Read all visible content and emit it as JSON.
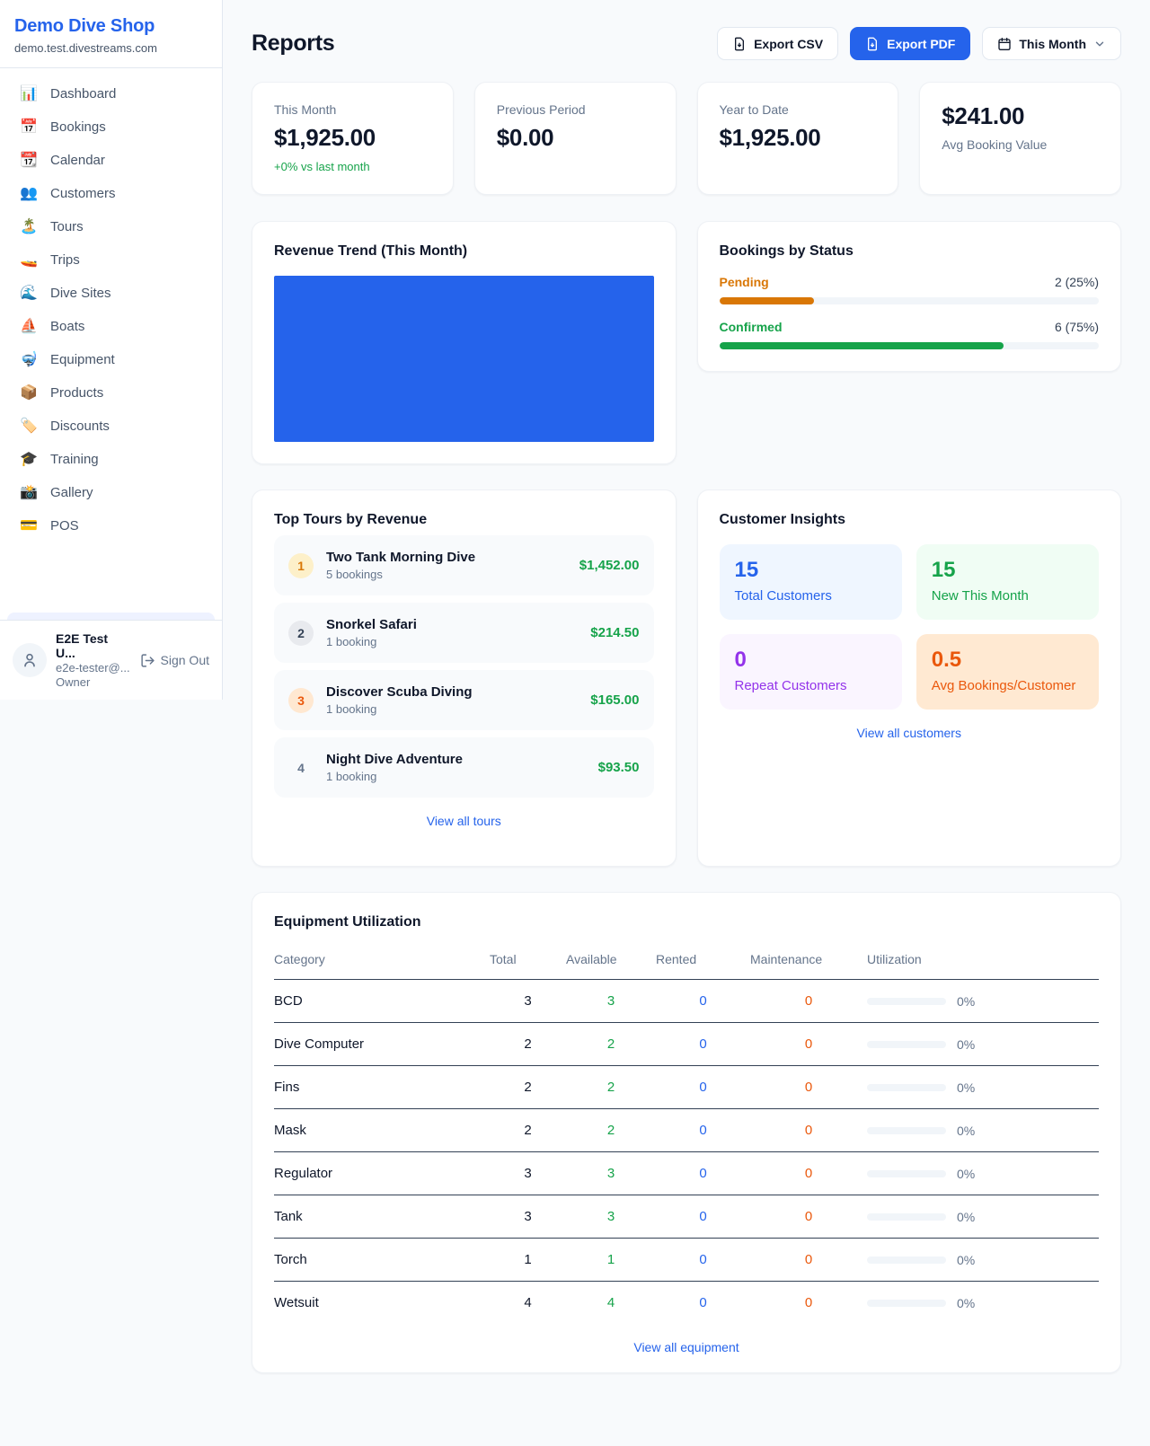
{
  "colors": {
    "accent_blue": "#2563eb",
    "green": "#16a34a",
    "amber": "#d97706",
    "orange": "#ea580c",
    "purple": "#9333ea"
  },
  "app": {
    "name": "Demo Dive Shop",
    "domain": "demo.test.divestreams.com"
  },
  "sidebar": {
    "items": [
      {
        "icon": "📊",
        "label": "Dashboard"
      },
      {
        "icon": "📅",
        "label": "Bookings"
      },
      {
        "icon": "📆",
        "label": "Calendar"
      },
      {
        "icon": "👥",
        "label": "Customers"
      },
      {
        "icon": "🏝️",
        "label": "Tours"
      },
      {
        "icon": "🚤",
        "label": "Trips"
      },
      {
        "icon": "🌊",
        "label": "Dive Sites"
      },
      {
        "icon": "⛵",
        "label": "Boats"
      },
      {
        "icon": "🤿",
        "label": "Equipment"
      },
      {
        "icon": "📦",
        "label": "Products"
      },
      {
        "icon": "🏷️",
        "label": "Discounts"
      },
      {
        "icon": "🎓",
        "label": "Training"
      },
      {
        "icon": "📸",
        "label": "Gallery"
      },
      {
        "icon": "💳",
        "label": "POS"
      }
    ],
    "user": {
      "name": "E2E Test U...",
      "email": "e2e-tester@...",
      "role": "Owner",
      "sign_out_label": "Sign Out"
    }
  },
  "header": {
    "title": "Reports",
    "export_csv_label": "Export CSV",
    "export_pdf_label": "Export PDF",
    "period_label": "This Month"
  },
  "stats": [
    {
      "label": "This Month",
      "value": "$1,925.00",
      "delta": "+0% vs last month"
    },
    {
      "label": "Previous Period",
      "value": "$0.00"
    },
    {
      "label": "Year to Date",
      "value": "$1,925.00"
    },
    {
      "label": "Avg Booking Value",
      "value": "$241.00"
    }
  ],
  "revenue_trend": {
    "title": "Revenue Trend (This Month)",
    "chart_fill": "#2563eb"
  },
  "booking_status": {
    "title": "Bookings by Status",
    "items": [
      {
        "label": "Pending",
        "count_label": "2 (25%)",
        "pct": 25
      },
      {
        "label": "Confirmed",
        "count_label": "6 (75%)",
        "pct": 75
      }
    ]
  },
  "top_tours": {
    "title": "Top Tours by Revenue",
    "items": [
      {
        "rank": "1",
        "name": "Two Tank Morning Dive",
        "bookings": "5 bookings",
        "revenue": "$1,452.00"
      },
      {
        "rank": "2",
        "name": "Snorkel Safari",
        "bookings": "1 booking",
        "revenue": "$214.50"
      },
      {
        "rank": "3",
        "name": "Discover Scuba Diving",
        "bookings": "1 booking",
        "revenue": "$165.00"
      },
      {
        "rank": "4",
        "name": "Night Dive Adventure",
        "bookings": "1 booking",
        "revenue": "$93.50"
      }
    ],
    "view_all_label": "View all tours"
  },
  "customer_insights": {
    "title": "Customer Insights",
    "tiles": [
      {
        "value": "15",
        "label": "Total Customers"
      },
      {
        "value": "15",
        "label": "New This Month"
      },
      {
        "value": "0",
        "label": "Repeat Customers"
      },
      {
        "value": "0.5",
        "label": "Avg Bookings/Customer"
      }
    ],
    "view_all_label": "View all customers"
  },
  "equipment": {
    "title": "Equipment Utilization",
    "headers": [
      "Category",
      "Total",
      "Available",
      "Rented",
      "Maintenance",
      "Utilization"
    ],
    "rows": [
      {
        "category": "BCD",
        "total": 3,
        "available": 3,
        "rented": 0,
        "maintenance": 0,
        "utilization_label": "0%",
        "utilization_pct": 0
      },
      {
        "category": "Dive Computer",
        "total": 2,
        "available": 2,
        "rented": 0,
        "maintenance": 0,
        "utilization_label": "0%",
        "utilization_pct": 0
      },
      {
        "category": "Fins",
        "total": 2,
        "available": 2,
        "rented": 0,
        "maintenance": 0,
        "utilization_label": "0%",
        "utilization_pct": 0
      },
      {
        "category": "Mask",
        "total": 2,
        "available": 2,
        "rented": 0,
        "maintenance": 0,
        "utilization_label": "0%",
        "utilization_pct": 0
      },
      {
        "category": "Regulator",
        "total": 3,
        "available": 3,
        "rented": 0,
        "maintenance": 0,
        "utilization_label": "0%",
        "utilization_pct": 0
      },
      {
        "category": "Tank",
        "total": 3,
        "available": 3,
        "rented": 0,
        "maintenance": 0,
        "utilization_label": "0%",
        "utilization_pct": 0
      },
      {
        "category": "Torch",
        "total": 1,
        "available": 1,
        "rented": 0,
        "maintenance": 0,
        "utilization_label": "0%",
        "utilization_pct": 0
      },
      {
        "category": "Wetsuit",
        "total": 4,
        "available": 4,
        "rented": 0,
        "maintenance": 0,
        "utilization_label": "0%",
        "utilization_pct": 0
      }
    ],
    "view_all_label": "View all equipment"
  }
}
